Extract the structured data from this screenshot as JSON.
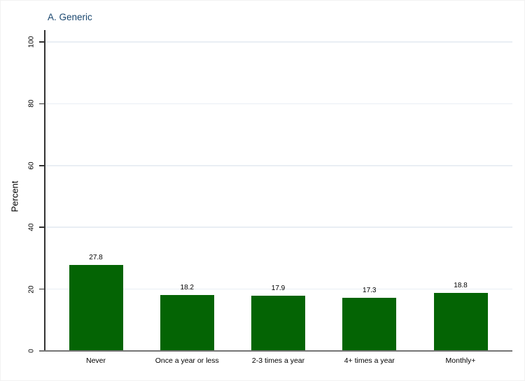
{
  "chart_data": {
    "type": "bar",
    "title": "A. Generic",
    "title_color": "#1a476f",
    "ylabel": "Percent",
    "xlabel": "",
    "categories": [
      "Never",
      "Once a year or less",
      "2-3 times a year",
      "4+ times a year",
      "Monthly+"
    ],
    "values": [
      27.8,
      18.2,
      17.9,
      17.3,
      18.8
    ],
    "value_labels": [
      "27.8",
      "18.2",
      "17.9",
      "17.3",
      "18.8"
    ],
    "yticks": [
      0,
      20,
      40,
      60,
      80,
      100
    ],
    "ytick_labels": [
      "0",
      "20",
      "40",
      "60",
      "80",
      "100"
    ],
    "ylim": [
      0,
      100
    ],
    "grid": true,
    "legend": "none",
    "bar_color": "#046404",
    "gridline_color": "#e9eef4"
  }
}
